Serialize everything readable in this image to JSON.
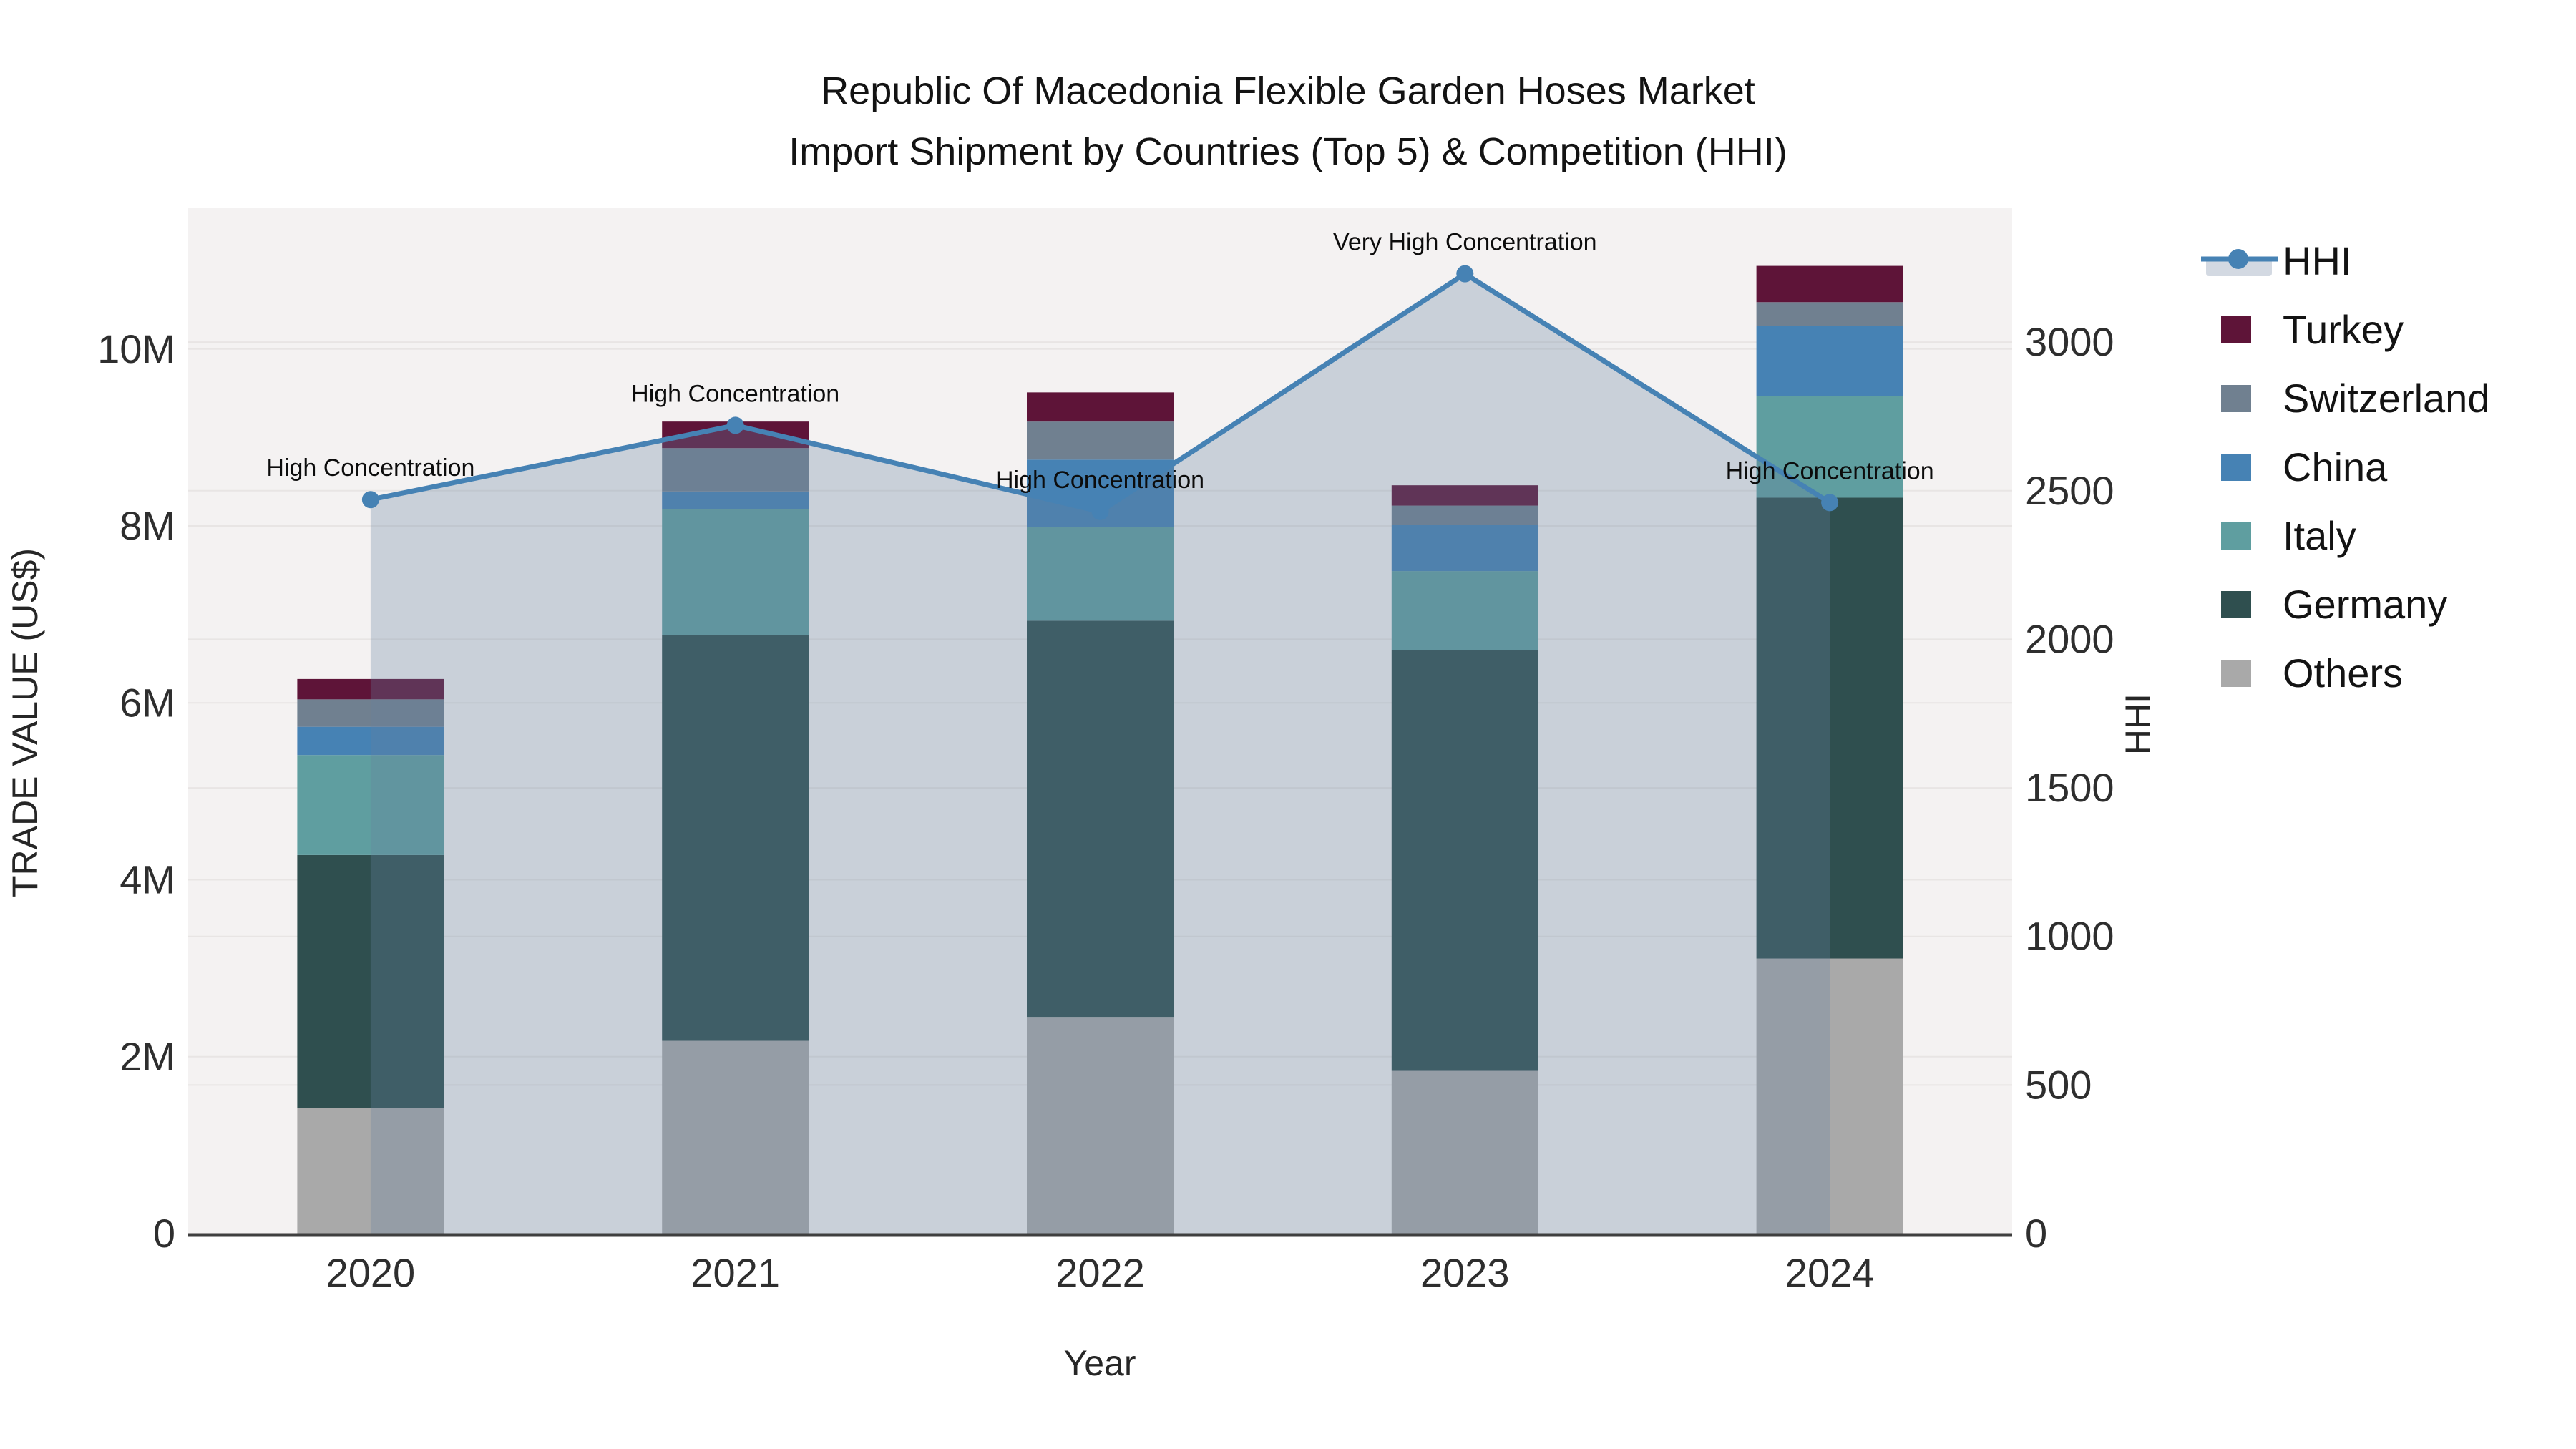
{
  "title": {
    "line1": "Republic Of Macedonia Flexible Garden Hoses Market",
    "line2": "Import Shipment by Countries (Top 5) & Competition (HHI)"
  },
  "axes": {
    "x": {
      "title": "Year",
      "categories": [
        "2020",
        "2021",
        "2022",
        "2023",
        "2024"
      ]
    },
    "left": {
      "title": "TRADE VALUE (US$)",
      "tick_labels": [
        "0",
        "2M",
        "4M",
        "6M",
        "8M",
        "10M"
      ],
      "tick_values": [
        0,
        2000000,
        4000000,
        6000000,
        8000000,
        10000000
      ],
      "range": [
        0,
        11600000
      ]
    },
    "right": {
      "title": "HHI",
      "tick_labels": [
        "0",
        "500",
        "1000",
        "1500",
        "2000",
        "2500",
        "3000"
      ],
      "tick_values": [
        0,
        500,
        1000,
        1500,
        2000,
        2500,
        3000
      ],
      "range": [
        0,
        3453
      ]
    }
  },
  "legend": {
    "items": [
      {
        "label": "HHI",
        "type": "line",
        "color": "#4682b4",
        "band_color": "#d3d9e2"
      },
      {
        "label": "Turkey",
        "type": "square",
        "color": "#5e1438"
      },
      {
        "label": "Switzerland",
        "type": "square",
        "color": "#708090"
      },
      {
        "label": "China",
        "type": "square",
        "color": "#4682b4"
      },
      {
        "label": "Italy",
        "type": "square",
        "color": "#5f9ea0"
      },
      {
        "label": "Germany",
        "type": "square",
        "color": "#2f4f4f"
      },
      {
        "label": "Others",
        "type": "square",
        "color": "#a9a9a9"
      }
    ]
  },
  "chart_data": {
    "type": "combo: stacked-bar + area-line",
    "title": "Republic Of Macedonia Flexible Garden Hoses Market Import Shipment by Countries (Top 5) & Competition (HHI)",
    "categories": [
      "2020",
      "2021",
      "2022",
      "2023",
      "2024"
    ],
    "bar_value_unit": "US$ trade value",
    "series": [
      {
        "name": "Others",
        "color": "#a9a9a9",
        "values": [
          1420000,
          2180000,
          2450000,
          1840000,
          3110000
        ]
      },
      {
        "name": "Germany",
        "color": "#2f4f4f",
        "values": [
          2860000,
          4590000,
          4480000,
          4760000,
          5210000
        ]
      },
      {
        "name": "Italy",
        "color": "#5f9ea0",
        "values": [
          1130000,
          1420000,
          1060000,
          890000,
          1150000
        ]
      },
      {
        "name": "China",
        "color": "#4682b4",
        "values": [
          320000,
          200000,
          760000,
          520000,
          790000
        ]
      },
      {
        "name": "Switzerland",
        "color": "#708090",
        "values": [
          310000,
          490000,
          430000,
          220000,
          270000
        ]
      },
      {
        "name": "Turkey",
        "color": "#5e1438",
        "values": [
          230000,
          300000,
          330000,
          230000,
          410000
        ]
      }
    ],
    "bar_totals": [
      6270000,
      9180000,
      9510000,
      8460000,
      10940000
    ],
    "line_series": {
      "name": "HHI",
      "axis": "right",
      "color": "#4682b4",
      "area_fill": "rgba(104,128,160,0.30)",
      "values": [
        2470,
        2720,
        2430,
        3230,
        2460
      ]
    },
    "annotations": [
      {
        "category": "2020",
        "text": "High Concentration"
      },
      {
        "category": "2021",
        "text": "High Concentration"
      },
      {
        "category": "2022",
        "text": "High Concentration"
      },
      {
        "category": "2023",
        "text": "Very High Concentration"
      },
      {
        "category": "2024",
        "text": "High Concentration"
      }
    ],
    "xlabel": "Year",
    "ylabel_left": "TRADE VALUE (US$)",
    "ylabel_right": "HHI",
    "ylim_left": [
      0,
      11600000
    ],
    "ylim_right": [
      0,
      3453
    ],
    "grid": true,
    "legend_position": "right",
    "plot_bg": "#f4f2f2",
    "grid_color": "#e8e5e4"
  }
}
